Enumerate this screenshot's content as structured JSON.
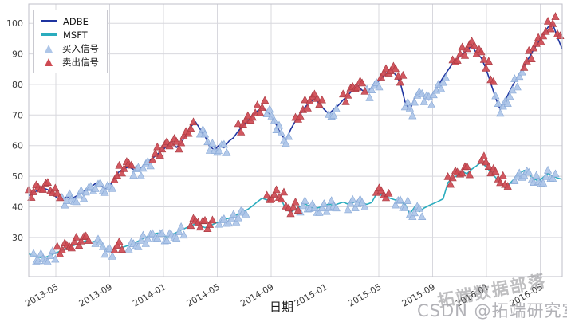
{
  "legend": {
    "items": [
      {
        "label": "ADBE",
        "type": "line",
        "color": "#1e34a0"
      },
      {
        "label": "MSFT",
        "type": "line",
        "color": "#2aacbe"
      },
      {
        "label": "买入信号",
        "type": "triangle",
        "color": "#aec6e8"
      },
      {
        "label": "卖出信号",
        "type": "triangle",
        "color": "#ce4a52"
      }
    ]
  },
  "watermark": {
    "line1": "拓端数据部落",
    "line2": "CSDN @拓端研究室"
  },
  "chart_data": {
    "type": "line",
    "title": "",
    "xlabel": "日期",
    "ylabel": "",
    "x_ticks": [
      "2013-05",
      "2013-09",
      "2014-01",
      "2014-05",
      "2014-09",
      "2015-01",
      "2015-05",
      "2015-09",
      "2016-01",
      "2016-05"
    ],
    "y_ticks": [
      30,
      40,
      50,
      60,
      70,
      80,
      90,
      100
    ],
    "ylim": [
      17.2,
      106.3
    ],
    "x_range": [
      "2013-03",
      "2016-06"
    ],
    "grid": true,
    "legend_position": "upper left",
    "style": {
      "grid_color": "#d8d8de",
      "spine_color": "#bfbfc8",
      "tick_color": "#3c3c3c"
    },
    "series": [
      {
        "name": "ADBE",
        "color": "#1e34a0",
        "values": [
          43.6,
          44.8,
          45.3,
          46.2,
          45.6,
          44.1,
          42.9,
          42.4,
          43.2,
          42.6,
          43.5,
          44.3,
          45.6,
          46.4,
          47.6,
          47.1,
          45.9,
          46.8,
          49.2,
          51.6,
          52.4,
          53.1,
          52.2,
          51.8,
          53.4,
          54.6,
          55.9,
          57.2,
          58.4,
          59.8,
          61.2,
          59.4,
          60.8,
          63.5,
          66.2,
          67.8,
          65.4,
          63.1,
          59.7,
          58.6,
          60.2,
          59.3,
          61.4,
          62.6,
          64.8,
          66.5,
          68.2,
          69.6,
          71.3,
          72.4,
          71.2,
          69.4,
          66.8,
          63.5,
          61.9,
          65.3,
          68.1,
          70.2,
          72.6,
          74.1,
          75.3,
          73.8,
          71.9,
          70.4,
          71.8,
          73.2,
          74.9,
          76.4,
          78.2,
          79.6,
          78.1,
          77.3,
          79.0,
          80.4,
          81.9,
          83.6,
          84.8,
          83.2,
          80.6,
          74.3,
          71.6,
          75.4,
          77.8,
          76.2,
          74.9,
          77.4,
          79.8,
          82.3,
          84.6,
          86.9,
          88.4,
          89.8,
          91.2,
          92.6,
          90.3,
          88.7,
          85.2,
          80.4,
          75.6,
          71.8,
          74.6,
          77.9,
          80.8,
          83.4,
          86.1,
          88.7,
          91.4,
          93.8,
          96.2,
          98.7,
          99.8,
          95.4,
          91.6
        ]
      },
      {
        "name": "MSFT",
        "color": "#2aacbe",
        "values": [
          24.6,
          24.1,
          23.6,
          23.2,
          23.8,
          24.5,
          25.1,
          25.8,
          26.4,
          27.1,
          27.7,
          28.3,
          28.9,
          28.4,
          28.8,
          28.2,
          26.1,
          25.7,
          26.2,
          26.6,
          26.9,
          27.4,
          28.1,
          28.8,
          29.6,
          30.3,
          31.0,
          31.4,
          30.7,
          30.2,
          30.9,
          31.6,
          32.4,
          33.1,
          33.8,
          34.4,
          33.9,
          33.2,
          33.7,
          34.5,
          35.1,
          35.8,
          36.3,
          36.9,
          37.6,
          38.4,
          39.2,
          40.3,
          41.6,
          42.8,
          42.2,
          42.9,
          43.6,
          42.4,
          39.1,
          38.3,
          39.2,
          40.1,
          40.9,
          40.2,
          39.4,
          39.8,
          40.3,
          40.9,
          40.4,
          41.0,
          41.5,
          40.9,
          41.3,
          41.8,
          41.2,
          40.8,
          41.4,
          44.2,
          43.8,
          43.3,
          42.7,
          42.2,
          41.6,
          40.9,
          37.6,
          39.9,
          38.4,
          39.6,
          40.4,
          41.1,
          41.8,
          42.6,
          47.9,
          49.4,
          50.2,
          51.6,
          50.8,
          52.3,
          53.4,
          54.6,
          53.1,
          51.4,
          49.6,
          47.8,
          46.2,
          47.6,
          49.3,
          50.8,
          51.9,
          50.6,
          49.2,
          48.4,
          49.6,
          50.9,
          50.1,
          49.4,
          49.0
        ]
      }
    ],
    "signals": {
      "buy_label": "买入信号",
      "sell_label": "卖出信号",
      "buy_fill": "#aec6e8",
      "buy_edge": "#87a8d6",
      "sell_fill": "#ce4a52",
      "sell_edge": "#a83a42",
      "ADBE": {
        "sell_ranges": [
          [
            0.0,
            0.055
          ],
          [
            0.16,
            0.19
          ],
          [
            0.23,
            0.31
          ],
          [
            0.385,
            0.44
          ],
          [
            0.5,
            0.55
          ],
          [
            0.585,
            0.625
          ],
          [
            0.66,
            0.7
          ],
          [
            0.79,
            0.87
          ],
          [
            0.925,
            0.995
          ]
        ],
        "buy_ranges": [
          [
            0.06,
            0.155
          ],
          [
            0.195,
            0.225
          ],
          [
            0.315,
            0.37
          ],
          [
            0.445,
            0.49
          ],
          [
            0.555,
            0.58
          ],
          [
            0.63,
            0.655
          ],
          [
            0.705,
            0.78
          ],
          [
            0.875,
            0.92
          ]
        ]
      },
      "MSFT": {
        "sell_ranges": [
          [
            0.05,
            0.115
          ],
          [
            0.158,
            0.178
          ],
          [
            0.3,
            0.345
          ],
          [
            0.44,
            0.5
          ],
          [
            0.645,
            0.675
          ],
          [
            0.785,
            0.83
          ],
          [
            0.845,
            0.9
          ]
        ],
        "buy_ranges": [
          [
            0.005,
            0.045
          ],
          [
            0.12,
            0.155
          ],
          [
            0.18,
            0.29
          ],
          [
            0.35,
            0.41
          ],
          [
            0.505,
            0.58
          ],
          [
            0.59,
            0.63
          ],
          [
            0.68,
            0.735
          ],
          [
            0.905,
            0.99
          ]
        ]
      }
    }
  }
}
